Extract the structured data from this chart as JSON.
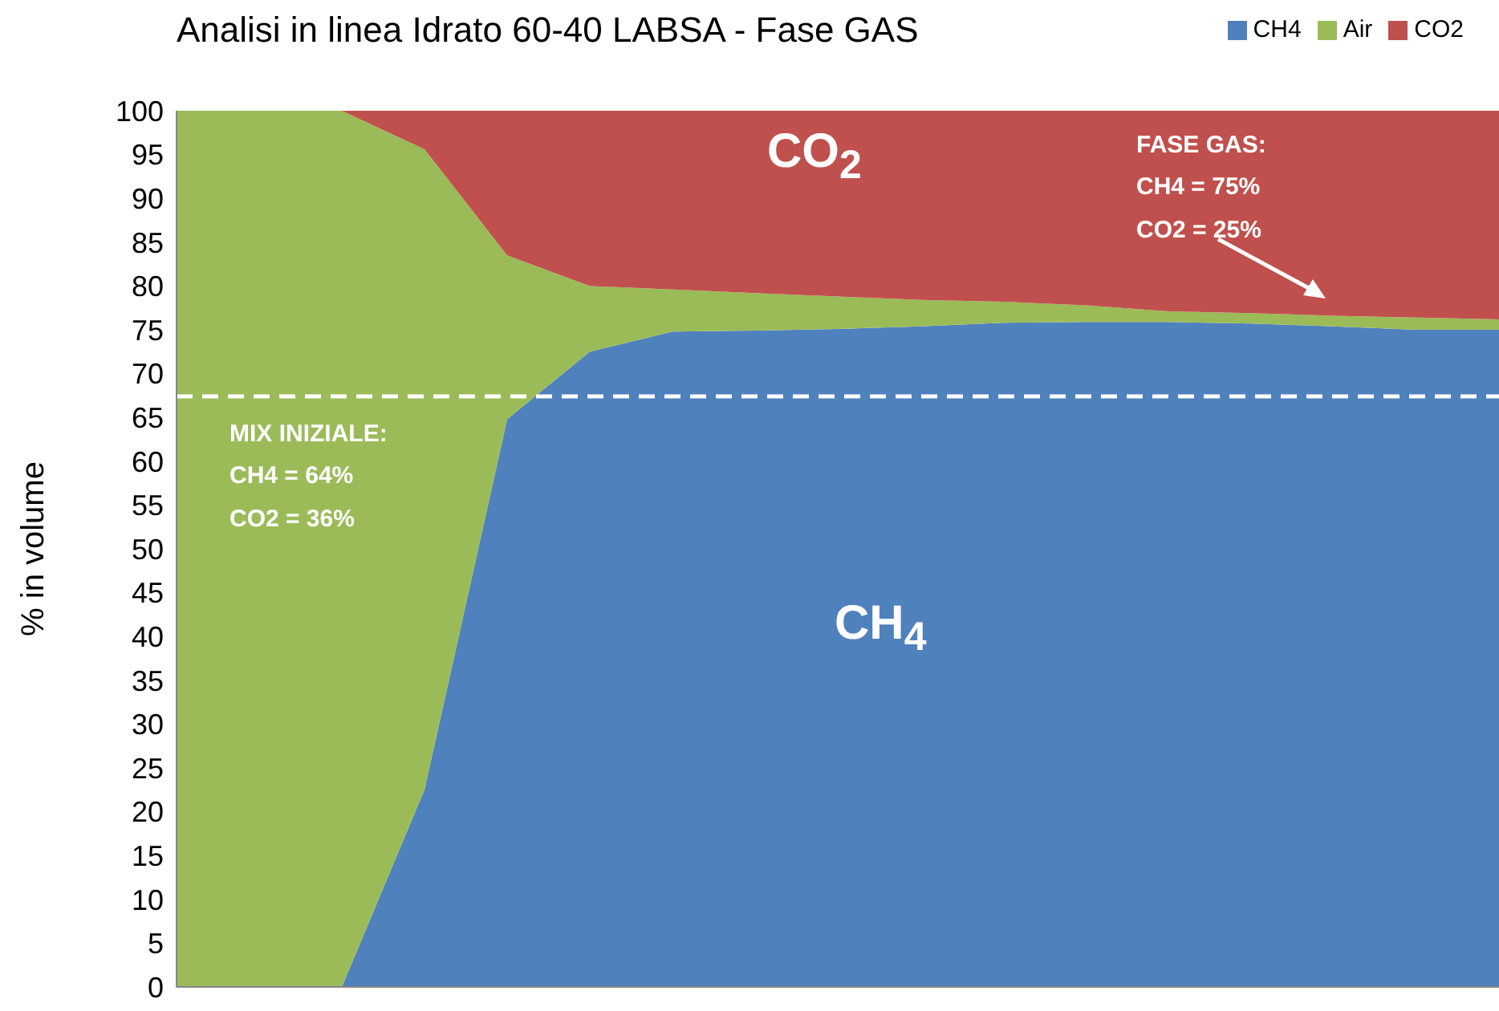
{
  "chart_data": {
    "type": "area",
    "stacked": true,
    "title": "Analisi in linea Idrato 60-40 LABSA - Fase GAS",
    "ylabel": "% in volume",
    "categories": [
      null,
      null,
      null,
      null,
      null,
      null,
      null,
      null,
      null,
      null,
      null,
      null,
      null,
      null,
      null,
      null,
      null
    ],
    "series": [
      {
        "name": "CH4",
        "color": "#4f81bd",
        "values": [
          0,
          0,
          0,
          22.5,
          64.8,
          72.5,
          74.8,
          74.9,
          75.1,
          75.4,
          75.8,
          75.9,
          75.9,
          75.7,
          75.4,
          75.0,
          75.0
        ]
      },
      {
        "name": "Air",
        "color": "#9bbb59",
        "values": [
          100,
          100,
          100,
          73.1,
          18.7,
          7.5,
          4.8,
          4.3,
          3.7,
          3.0,
          2.4,
          1.9,
          1.2,
          1.2,
          1.2,
          1.4,
          1.2
        ]
      },
      {
        "name": "CO2",
        "color": "#c0504d",
        "values": [
          0,
          0,
          0,
          4.4,
          16.5,
          20.0,
          20.4,
          20.8,
          21.2,
          21.6,
          21.8,
          22.2,
          22.9,
          23.1,
          23.4,
          23.6,
          23.8
        ]
      }
    ],
    "ylim": [
      0,
      100
    ],
    "yticks": [
      0,
      5,
      10,
      15,
      20,
      25,
      30,
      35,
      40,
      45,
      50,
      55,
      60,
      65,
      70,
      75,
      80,
      85,
      90,
      95,
      100
    ],
    "ref_lines": [
      {
        "axis": "y",
        "value": 67.4,
        "color": "#ffffff",
        "line_style": "dashed"
      }
    ],
    "annotations": [
      "CO$_{2}$",
      "CH$_{4}$",
      "MIX INIZIALE:\nCH4 = 64%\nCO2 = 36%",
      "FASE GAS:\nCH4 = 75%\nCO2 = 25%"
    ],
    "grid": false,
    "legend": "top right",
    "tick_labels": "y"
  }
}
